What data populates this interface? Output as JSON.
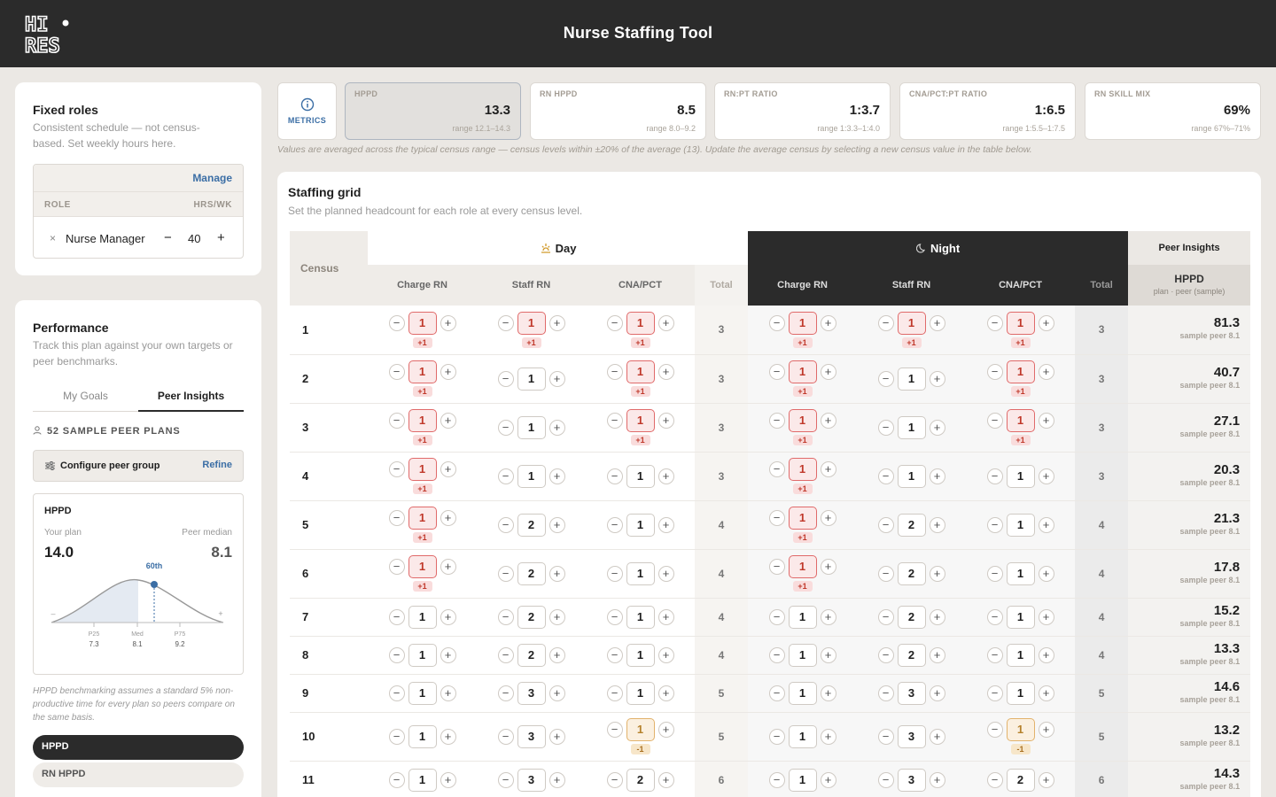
{
  "header": {
    "logo_line1": "HI",
    "logo_line2": "RES",
    "title": "Nurse Staffing Tool"
  },
  "fixed_roles": {
    "title": "Fixed roles",
    "subtitle": "Consistent schedule — not census-based. Set weekly hours here.",
    "manage_label": "Manage",
    "col_role": "ROLE",
    "col_hours": "HRS/WK",
    "rows": [
      {
        "remove": "×",
        "role": "Nurse Manager",
        "minus": "−",
        "hours": "40",
        "plus": "+"
      }
    ]
  },
  "performance": {
    "title": "Performance",
    "subtitle": "Track this plan against your own targets or peer benchmarks.",
    "tabs": [
      "My Goals",
      "Peer Insights"
    ],
    "peer_count": "52 SAMPLE PEER PLANS",
    "configure_label": "Configure peer group",
    "refine_label": "Refine",
    "hppd_card": {
      "title": "HPPD",
      "your_plan_label": "Your plan",
      "your_plan_value": "14.0",
      "peer_median_label": "Peer median",
      "peer_median_value": "8.1",
      "percentile": "60th",
      "percentile_value": 60,
      "left_marker": "–",
      "right_marker": "+",
      "ticks": [
        {
          "label": "P25",
          "value": "7.3"
        },
        {
          "label": "Med",
          "value": "8.1"
        },
        {
          "label": "P75",
          "value": "9.2"
        }
      ]
    },
    "note": "HPPD benchmarking assumes a standard 5% non-productive time for every plan so peers compare on the same basis.",
    "metric_pills": [
      "HPPD",
      "RN HPPD"
    ]
  },
  "metrics": {
    "button_label": "METRICS",
    "icon": "info-icon",
    "cards": [
      {
        "label": "HPPD",
        "value": "13.3",
        "range": "range 12.1–14.3",
        "selected": true
      },
      {
        "label": "RN HPPD",
        "value": "8.5",
        "range": "range 8.0–9.2"
      },
      {
        "label": "RN:PT RATIO",
        "value": "1:3.7",
        "range": "range 1:3.3–1:4.0"
      },
      {
        "label": "CNA/PCT:PT RATIO",
        "value": "1:6.5",
        "range": "range 1:5.5–1:7.5"
      },
      {
        "label": "RN SKILL MIX",
        "value": "69%",
        "range": "range 67%–71%"
      }
    ],
    "note": "Values are averaged across the typical census range — census levels within ±20% of the average (13). Update the average census by selecting a new census value in the table below."
  },
  "grid": {
    "title": "Staffing grid",
    "subtitle": "Set the planned headcount for each role at every census level.",
    "census_header": "Census",
    "day_label": "Day",
    "night_label": "Night",
    "peer_label": "Peer Insights",
    "day_icon": "sun-icon",
    "night_icon": "moon-icon",
    "subheaders": [
      "Charge RN",
      "Staff RN",
      "CNA/PCT",
      "Total"
    ],
    "peer_sub": "HPPD",
    "peer_sub2": "plan · peer (sample)",
    "rows": [
      {
        "census": "1",
        "day": [
          [
            "1",
            "+1"
          ],
          [
            "1",
            "+1"
          ],
          [
            "1",
            "+1"
          ]
        ],
        "day_total": "3",
        "night": [
          [
            "1",
            "+1"
          ],
          [
            "1",
            "+1"
          ],
          [
            "1",
            "+1"
          ]
        ],
        "night_total": "3",
        "hppd": "81.3",
        "peer": "sample peer 8.1"
      },
      {
        "census": "2",
        "day": [
          [
            "1",
            "+1"
          ],
          [
            "1",
            ""
          ],
          [
            "1",
            "+1"
          ]
        ],
        "day_total": "3",
        "night": [
          [
            "1",
            "+1"
          ],
          [
            "1",
            ""
          ],
          [
            "1",
            "+1"
          ]
        ],
        "night_total": "3",
        "hppd": "40.7",
        "peer": "sample peer 8.1"
      },
      {
        "census": "3",
        "day": [
          [
            "1",
            "+1"
          ],
          [
            "1",
            ""
          ],
          [
            "1",
            "+1"
          ]
        ],
        "day_total": "3",
        "night": [
          [
            "1",
            "+1"
          ],
          [
            "1",
            ""
          ],
          [
            "1",
            "+1"
          ]
        ],
        "night_total": "3",
        "hppd": "27.1",
        "peer": "sample peer 8.1"
      },
      {
        "census": "4",
        "day": [
          [
            "1",
            "+1"
          ],
          [
            "1",
            ""
          ],
          [
            "1",
            ""
          ]
        ],
        "day_total": "3",
        "night": [
          [
            "1",
            "+1"
          ],
          [
            "1",
            ""
          ],
          [
            "1",
            ""
          ]
        ],
        "night_total": "3",
        "hppd": "20.3",
        "peer": "sample peer 8.1"
      },
      {
        "census": "5",
        "day": [
          [
            "1",
            "+1"
          ],
          [
            "2",
            ""
          ],
          [
            "1",
            ""
          ]
        ],
        "day_total": "4",
        "night": [
          [
            "1",
            "+1"
          ],
          [
            "2",
            ""
          ],
          [
            "1",
            ""
          ]
        ],
        "night_total": "4",
        "hppd": "21.3",
        "peer": "sample peer 8.1"
      },
      {
        "census": "6",
        "day": [
          [
            "1",
            "+1"
          ],
          [
            "2",
            ""
          ],
          [
            "1",
            ""
          ]
        ],
        "day_total": "4",
        "night": [
          [
            "1",
            "+1"
          ],
          [
            "2",
            ""
          ],
          [
            "1",
            ""
          ]
        ],
        "night_total": "4",
        "hppd": "17.8",
        "peer": "sample peer 8.1"
      },
      {
        "census": "7",
        "day": [
          [
            "1",
            ""
          ],
          [
            "2",
            ""
          ],
          [
            "1",
            ""
          ]
        ],
        "day_total": "4",
        "night": [
          [
            "1",
            ""
          ],
          [
            "2",
            ""
          ],
          [
            "1",
            ""
          ]
        ],
        "night_total": "4",
        "hppd": "15.2",
        "peer": "sample peer 8.1"
      },
      {
        "census": "8",
        "day": [
          [
            "1",
            ""
          ],
          [
            "2",
            ""
          ],
          [
            "1",
            ""
          ]
        ],
        "day_total": "4",
        "night": [
          [
            "1",
            ""
          ],
          [
            "2",
            ""
          ],
          [
            "1",
            ""
          ]
        ],
        "night_total": "4",
        "hppd": "13.3",
        "peer": "sample peer 8.1"
      },
      {
        "census": "9",
        "day": [
          [
            "1",
            ""
          ],
          [
            "3",
            ""
          ],
          [
            "1",
            ""
          ]
        ],
        "day_total": "5",
        "night": [
          [
            "1",
            ""
          ],
          [
            "3",
            ""
          ],
          [
            "1",
            ""
          ]
        ],
        "night_total": "5",
        "hppd": "14.6",
        "peer": "sample peer 8.1"
      },
      {
        "census": "10",
        "day": [
          [
            "1",
            ""
          ],
          [
            "3",
            ""
          ],
          [
            "1",
            "-1"
          ]
        ],
        "day_total": "5",
        "night": [
          [
            "1",
            ""
          ],
          [
            "3",
            ""
          ],
          [
            "1",
            "-1"
          ]
        ],
        "night_total": "5",
        "hppd": "13.2",
        "peer": "sample peer 8.1"
      },
      {
        "census": "11",
        "day": [
          [
            "1",
            ""
          ],
          [
            "3",
            ""
          ],
          [
            "2",
            ""
          ]
        ],
        "day_total": "6",
        "night": [
          [
            "1",
            ""
          ],
          [
            "3",
            ""
          ],
          [
            "2",
            ""
          ]
        ],
        "night_total": "6",
        "hppd": "14.3",
        "peer": "sample peer 8.1"
      }
    ]
  }
}
